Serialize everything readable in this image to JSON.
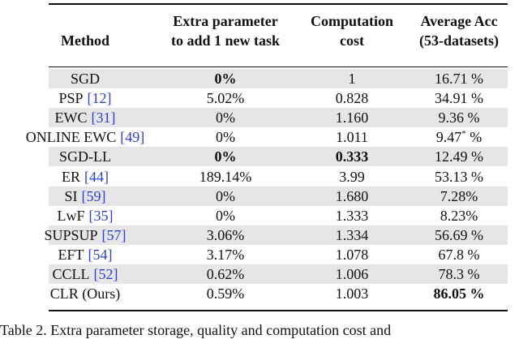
{
  "table": {
    "header": [
      "Method",
      "Extra parameter to add 1 new task",
      "Computation cost",
      "Average Acc (53-datasets)"
    ],
    "header_lines": [
      [
        "Method"
      ],
      [
        "Extra parameter",
        "to add 1 new task"
      ],
      [
        "Computation",
        "cost"
      ],
      [
        "Average Acc",
        "(53-datasets)"
      ]
    ],
    "rows": [
      {
        "method": "SGD",
        "params": "0%",
        "cost": "1",
        "acc": "16.71 %",
        "bold": [
          "params"
        ]
      },
      {
        "method": "PSP",
        "cite": "[12]",
        "params": "5.02%",
        "cost": "0.828",
        "acc": "34.91 %"
      },
      {
        "method": "EWC",
        "cite": "[31]",
        "params": "0%",
        "cost": "1.160",
        "acc": "9.36 %"
      },
      {
        "method": "ONLINE EWC",
        "cite": "[49]",
        "params": "0%",
        "cost": "1.011",
        "acc": "9.47",
        "acc_sup": "*",
        "acc_suffix": " %"
      },
      {
        "method": "SGD-LL",
        "params": "0%",
        "cost": "0.333",
        "acc": "12.49 %",
        "bold": [
          "params",
          "cost"
        ]
      },
      {
        "method": "ER",
        "cite": "[44]",
        "params": "189.14%",
        "cost": "3.99",
        "acc": "53.13 %"
      },
      {
        "method": "SI",
        "cite": "[59]",
        "params": "0%",
        "cost": "1.680",
        "acc": "7.28%"
      },
      {
        "method": "LwF",
        "cite": "[35]",
        "params": "0%",
        "cost": "1.333",
        "acc": "8.23%"
      },
      {
        "method": "SUPSUP",
        "cite": "[57]",
        "params": "3.06%",
        "cost": "1.334",
        "acc": "56.69 %"
      },
      {
        "method": "EFT",
        "cite": "[54]",
        "params": "3.17%",
        "cost": "1.078",
        "acc": "67.8 %"
      },
      {
        "method": "CCLL",
        "cite": "[52]",
        "params": "0.62%",
        "cost": "1.006",
        "acc": "78.3 %"
      },
      {
        "method": "CLR (Ours)",
        "params": "0.59%",
        "cost": "1.003",
        "acc": "86.05 %",
        "bold": [
          "acc"
        ]
      }
    ]
  },
  "caption": "Table 2. Extra parameter storage, quality and computation cost and"
}
